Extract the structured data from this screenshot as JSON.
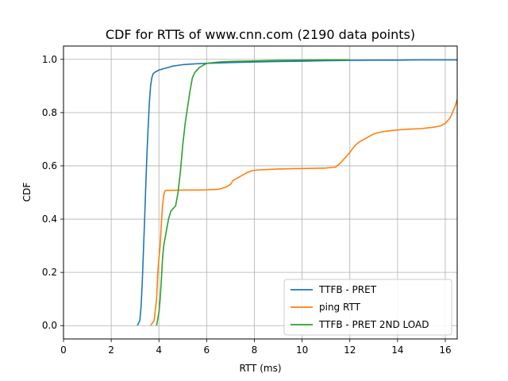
{
  "chart_data": {
    "type": "line",
    "title": "CDF for RTTs of www.cnn.com (2190 data points)",
    "xlabel": "RTT (ms)",
    "ylabel": "CDF",
    "xlim": [
      0,
      16.5
    ],
    "ylim": [
      -0.05,
      1.05
    ],
    "xticks": [
      0,
      2,
      4,
      6,
      8,
      10,
      12,
      14,
      16
    ],
    "yticks": [
      0.0,
      0.2,
      0.4,
      0.6,
      0.8,
      1.0
    ],
    "xtick_labels": [
      "0",
      "2",
      "4",
      "6",
      "8",
      "10",
      "12",
      "14",
      "16"
    ],
    "ytick_labels": [
      "0.0",
      "0.2",
      "0.4",
      "0.6",
      "0.8",
      "1.0"
    ],
    "grid": true,
    "legend_position": "lower-right",
    "series": [
      {
        "name": "TTFB - PRET",
        "color": "#1f77b4",
        "x": [
          3.1,
          3.2,
          3.25,
          3.3,
          3.35,
          3.4,
          3.45,
          3.5,
          3.55,
          3.6,
          3.65,
          3.7,
          3.75,
          3.8,
          3.9,
          4.0,
          4.2,
          4.4,
          4.6,
          5.0,
          5.5,
          6.0,
          7.0,
          8.0,
          9.0,
          10.0,
          11.0,
          12.0,
          13.0,
          14.0,
          15.0,
          16.0,
          16.5
        ],
        "y": [
          0.0,
          0.02,
          0.07,
          0.16,
          0.28,
          0.4,
          0.53,
          0.65,
          0.75,
          0.84,
          0.9,
          0.93,
          0.945,
          0.95,
          0.955,
          0.96,
          0.965,
          0.97,
          0.975,
          0.98,
          0.983,
          0.985,
          0.988,
          0.99,
          0.992,
          0.993,
          0.995,
          0.996,
          0.997,
          0.997,
          0.998,
          0.998,
          0.998
        ]
      },
      {
        "name": "ping RTT",
        "color": "#ff7f0e",
        "x": [
          3.65,
          3.8,
          3.9,
          3.95,
          4.0,
          4.05,
          4.1,
          4.15,
          4.2,
          4.25,
          4.3,
          4.5,
          5.0,
          5.5,
          6.0,
          6.5,
          6.8,
          7.0,
          7.1,
          7.3,
          7.5,
          7.7,
          7.9,
          8.2,
          9.0,
          10.0,
          11.0,
          11.4,
          11.6,
          11.8,
          12.0,
          12.2,
          12.4,
          12.6,
          12.8,
          13.0,
          13.2,
          13.5,
          14.0,
          14.5,
          15.0,
          15.5,
          15.8,
          16.0,
          16.1,
          16.2,
          16.3,
          16.4,
          16.5
        ],
        "y": [
          0.0,
          0.02,
          0.1,
          0.2,
          0.25,
          0.3,
          0.38,
          0.45,
          0.49,
          0.505,
          0.508,
          0.508,
          0.509,
          0.509,
          0.51,
          0.512,
          0.52,
          0.53,
          0.545,
          0.555,
          0.565,
          0.575,
          0.582,
          0.585,
          0.588,
          0.59,
          0.592,
          0.595,
          0.61,
          0.63,
          0.65,
          0.675,
          0.69,
          0.7,
          0.71,
          0.72,
          0.725,
          0.73,
          0.735,
          0.738,
          0.74,
          0.745,
          0.75,
          0.76,
          0.77,
          0.78,
          0.8,
          0.82,
          0.85
        ]
      },
      {
        "name": "TTFB - PRET 2ND LOAD",
        "color": "#2ca02c",
        "x": [
          3.9,
          4.0,
          4.05,
          4.1,
          4.15,
          4.2,
          4.3,
          4.4,
          4.5,
          4.6,
          4.7,
          4.8,
          4.9,
          5.0,
          5.1,
          5.2,
          5.3,
          5.4,
          5.5,
          5.6,
          5.7,
          5.8,
          5.9,
          6.0,
          6.5,
          7.0,
          8.0,
          9.0,
          10.0,
          11.0,
          12.0
        ],
        "y": [
          0.0,
          0.05,
          0.1,
          0.17,
          0.25,
          0.3,
          0.35,
          0.4,
          0.43,
          0.44,
          0.45,
          0.5,
          0.58,
          0.68,
          0.76,
          0.82,
          0.88,
          0.93,
          0.95,
          0.96,
          0.97,
          0.975,
          0.98,
          0.985,
          0.99,
          0.992,
          0.994,
          0.996,
          0.997,
          0.998,
          0.998
        ]
      }
    ]
  }
}
